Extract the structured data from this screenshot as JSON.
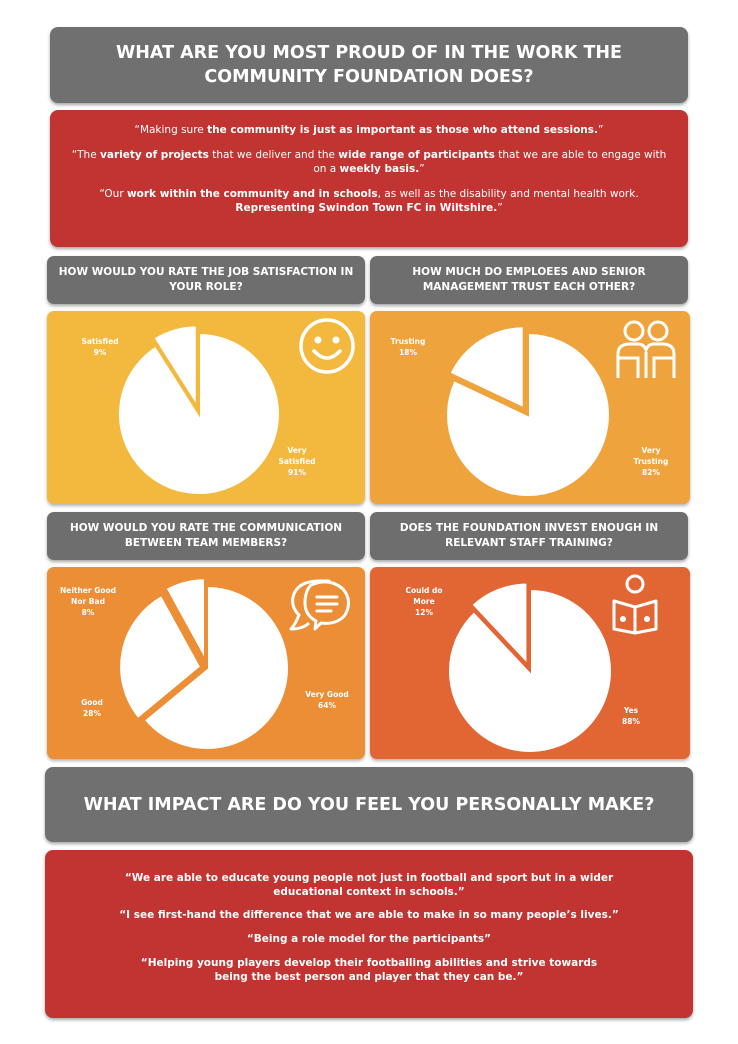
{
  "header": {
    "title_line1": "WHAT ARE YOU MOST PROUD OF IN THE WORK THE",
    "title_line2": "COMMUNITY FOUNDATION DOES?"
  },
  "proud_quotes": {
    "q1_a": "“Making sure ",
    "q1_b": "the community is just as important as those who attend sessions.",
    "q1_c": "”",
    "q2_a": "“The ",
    "q2_b": "variety of projects",
    "q2_c": " that we deliver and the ",
    "q2_d": "wide range of participants",
    "q2_e": " that we are able to engage with on a ",
    "q2_f": "weekly basis.",
    "q2_g": "”",
    "q3_a": "“Our ",
    "q3_b": "work within the community and in schools",
    "q3_c": ", as well as the disability and mental health work. ",
    "q3_d": "Representing Swindon Town FC in Wiltshire.",
    "q3_e": "”"
  },
  "questions": {
    "job_satisfaction": "HOW WOULD YOU RATE THE JOB SATISFACTION IN YOUR ROLE?",
    "trust": "HOW MUCH DO EMPLOEES AND SENIOR MANAGEMENT TRUST EACH OTHER?",
    "communication": "HOW WOULD YOU RATE THE COMMUNICATION BETWEEN TEAM MEMBERS?",
    "training": "DOES THE FOUNDATION INVEST ENOUGH IN RELEVANT STAFF TRAINING?"
  },
  "chart_data": [
    {
      "type": "pie",
      "title": "HOW WOULD YOU RATE THE JOB SATISFACTION IN YOUR ROLE?",
      "slices": [
        {
          "label_lines": [
            "Very",
            "Satisfied"
          ],
          "value": 91,
          "pct": "91%"
        },
        {
          "label_lines": [
            "Satisfied"
          ],
          "value": 9,
          "pct": "9%"
        }
      ],
      "background": "#f3b93f",
      "icon": "smiley-face-icon"
    },
    {
      "type": "pie",
      "title": "HOW MUCH DO EMPLOEES AND SENIOR MANAGEMENT TRUST EACH OTHER?",
      "slices": [
        {
          "label_lines": [
            "Very",
            "Trusting"
          ],
          "value": 82,
          "pct": "82%"
        },
        {
          "label_lines": [
            "Trusting"
          ],
          "value": 18,
          "pct": "18%"
        }
      ],
      "background": "#efa33c",
      "icon": "two-people-icon"
    },
    {
      "type": "pie",
      "title": "HOW WOULD YOU RATE THE COMMUNICATION BETWEEN TEAM MEMBERS?",
      "slices": [
        {
          "label_lines": [
            "Very Good"
          ],
          "value": 64,
          "pct": "64%"
        },
        {
          "label_lines": [
            "Good"
          ],
          "value": 28,
          "pct": "28%"
        },
        {
          "label_lines": [
            "Neither Good",
            "Nor Bad"
          ],
          "value": 8,
          "pct": "8%"
        }
      ],
      "background": "#eb8e35",
      "icon": "speech-bubble-icon"
    },
    {
      "type": "pie",
      "title": "DOES THE FOUNDATION INVEST ENOUGH IN RELEVANT STAFF TRAINING?",
      "slices": [
        {
          "label_lines": [
            "Yes"
          ],
          "value": 88,
          "pct": "88%"
        },
        {
          "label_lines": [
            "Could do",
            "More"
          ],
          "value": 12,
          "pct": "12%"
        }
      ],
      "background": "#e26634",
      "icon": "reading-person-icon"
    }
  ],
  "impact": {
    "title": "WHAT IMPACT ARE DO YOU FEEL YOU PERSONALLY MAKE?",
    "q1_line1": "“We are able to educate young people not just in football and sport but in a wider",
    "q1_line2": "educational context in schools.”",
    "q2": "“I see first-hand the difference that we are able to make in so many people’s lives.”",
    "q3": "“Being a role model for the participants”",
    "q4_line1": "“Helping young players develop their footballing abilities and strive towards",
    "q4_line2": "being the best person and player that they can be.”"
  },
  "colors": {
    "banner_grey": "#707070",
    "quote_red": "#c23431",
    "slice_fill": "#ffffff"
  }
}
